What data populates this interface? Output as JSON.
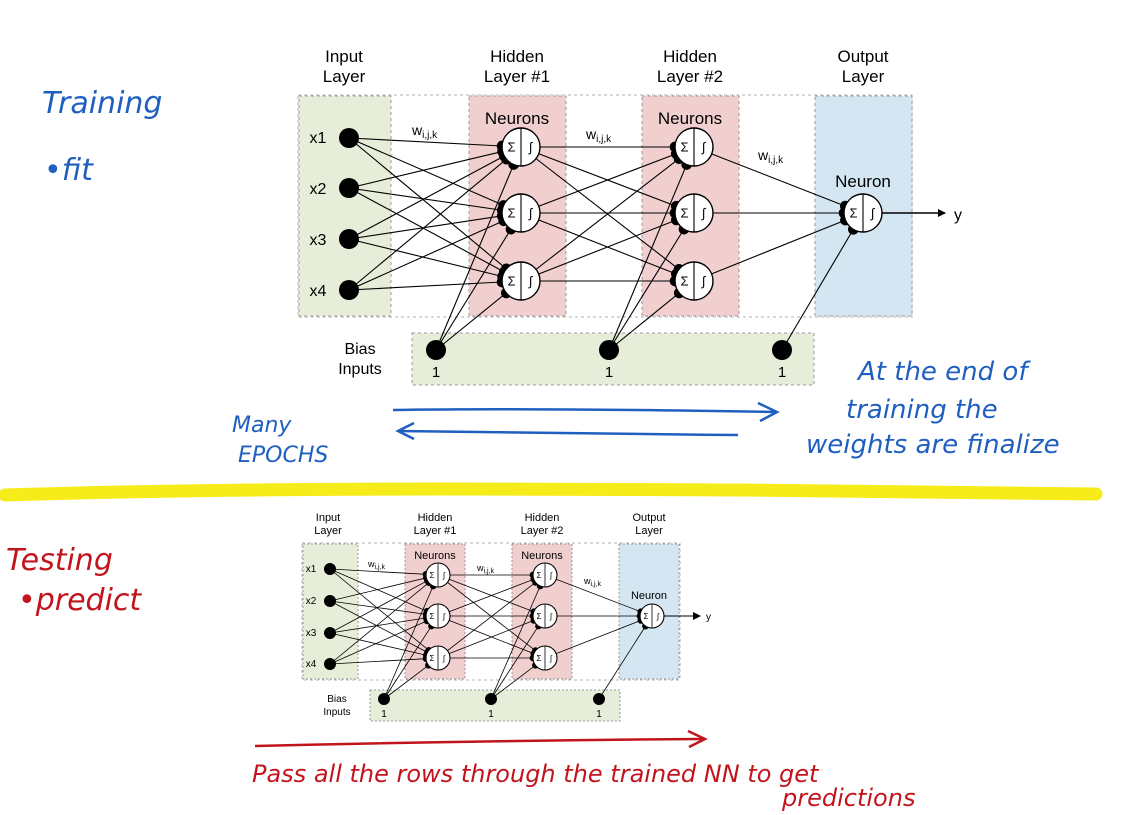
{
  "labels": {
    "input_layer": [
      "Input",
      "Layer"
    ],
    "hidden1": [
      "Hidden",
      "Layer #1"
    ],
    "hidden2": [
      "Hidden",
      "Layer #2"
    ],
    "output_layer": [
      "Output",
      "Layer"
    ],
    "neurons": "Neurons",
    "neuron": "Neuron",
    "weight": "w",
    "weight_sub": "i,j,k",
    "bias": [
      "Bias",
      "Inputs"
    ],
    "output": "y",
    "inputs": [
      "x1",
      "x2",
      "x3",
      "x4"
    ],
    "bias_values": [
      "1",
      "1",
      "1"
    ],
    "sum_symbol": "Σ",
    "step_symbol": "∫"
  },
  "notes": {
    "training": "Training",
    "fit": "•fit",
    "testing": "Testing",
    "predict": "•predict",
    "epochs": [
      "Many",
      "EPOCHS"
    ],
    "end_training": [
      "At the end of",
      "training the",
      "weights are finalize"
    ],
    "pass_rows": "Pass all the rows through the trained NN to get",
    "predictions": "predictions"
  },
  "colors": {
    "input_bg": "#e6eed9",
    "hidden_bg": "#f2cfcf",
    "output_bg": "#d3e6f1",
    "bias_bg": "#e6eed9",
    "blue_ink": "#1f5fc0",
    "red_ink": "#c2141c",
    "highlight": "#f6ec1a"
  }
}
